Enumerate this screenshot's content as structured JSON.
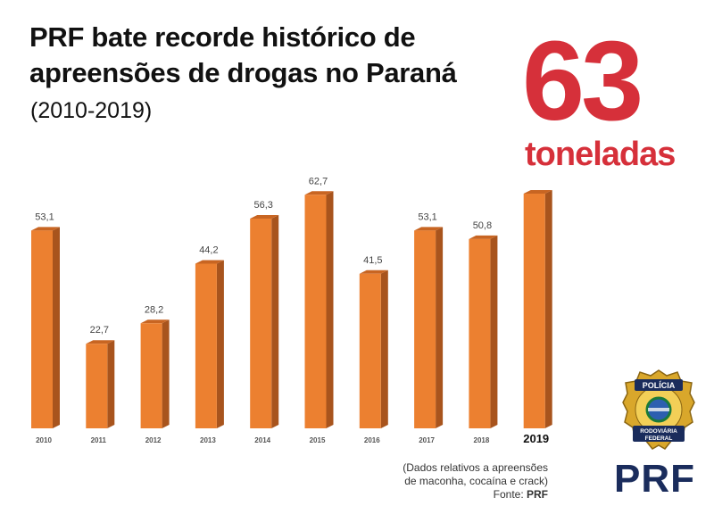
{
  "header": {
    "title": "PRF bate recorde histórico de apreensões de drogas no Paraná",
    "period": "(2010-2019)"
  },
  "highlight": {
    "number": "63",
    "unit": "toneladas"
  },
  "source": {
    "line1": "(Dados relativos a apreensões",
    "line2": "de maconha, cocaína e crack)",
    "prefix": "Fonte: ",
    "name": "PRF"
  },
  "logo": {
    "badge_top": "POLÍCIA",
    "badge_bottom_1": "RODOVIÁRIA",
    "badge_bottom_2": "FEDERAL",
    "wordmark": "PRF"
  },
  "colors": {
    "bar_front": "#ec8030",
    "bar_side": "#a8541d",
    "bar_top": "#c86522",
    "accent": "#d6303a",
    "brand": "#1a2c5c"
  },
  "chart_data": {
    "type": "bar",
    "categories": [
      "2010",
      "2011",
      "2012",
      "2013",
      "2014",
      "2015",
      "2016",
      "2017",
      "2018",
      "2019"
    ],
    "values": [
      53.1,
      22.7,
      28.2,
      44.2,
      56.3,
      62.7,
      41.5,
      53.1,
      50.8,
      63
    ],
    "labels": [
      "53,1",
      "22,7",
      "28,2",
      "44,2",
      "56,3",
      "62,7",
      "41,5",
      "53,1",
      "50,8",
      ""
    ],
    "highlight_category": "2019",
    "title": "",
    "xlabel": "",
    "ylabel": "",
    "ylim": [
      0,
      63
    ],
    "grid": false,
    "legend": "none"
  }
}
